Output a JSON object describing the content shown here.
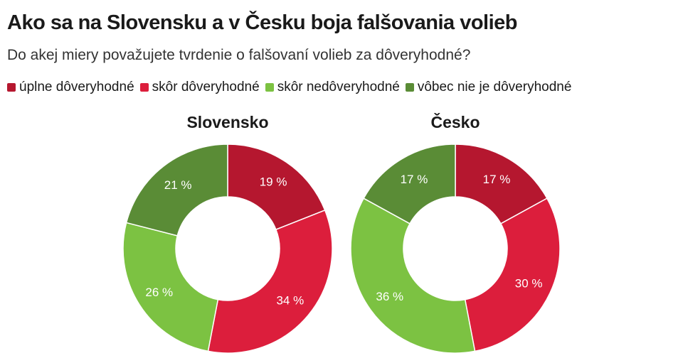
{
  "header": {
    "title": "Ako sa na Slovensku a v Česku boja falšovania volieb",
    "subtitle": "Do akej miery považujete tvrdenie o falšovaní volieb za dôveryhodné?"
  },
  "legend": [
    {
      "label": "úplne dôveryhodné",
      "color": "#b5172f"
    },
    {
      "label": "skôr dôveryhodné",
      "color": "#dc1e3c"
    },
    {
      "label": "skôr nedôveryhodné",
      "color": "#7cc242"
    },
    {
      "label": "vôbec nie je dôveryhodné",
      "color": "#5a8c36"
    }
  ],
  "chart_data": [
    {
      "type": "pie",
      "title": "Slovensko",
      "categories": [
        "úplne dôveryhodné",
        "skôr dôveryhodné",
        "skôr nedôveryhodné",
        "vôbec nie je dôveryhodné"
      ],
      "values": [
        19,
        34,
        26,
        21
      ],
      "labels": [
        "19 %",
        "34 %",
        "26 %",
        "21 %"
      ],
      "colors": [
        "#b5172f",
        "#dc1e3c",
        "#7cc242",
        "#5a8c36"
      ]
    },
    {
      "type": "pie",
      "title": "Česko",
      "categories": [
        "úplne dôveryhodné",
        "skôr dôveryhodné",
        "skôr nedôveryhodné",
        "vôbec nie je dôveryhodné"
      ],
      "values": [
        17,
        30,
        36,
        17
      ],
      "labels": [
        "17 %",
        "30 %",
        "36 %",
        "17 %"
      ],
      "colors": [
        "#b5172f",
        "#dc1e3c",
        "#7cc242",
        "#5a8c36"
      ]
    }
  ]
}
